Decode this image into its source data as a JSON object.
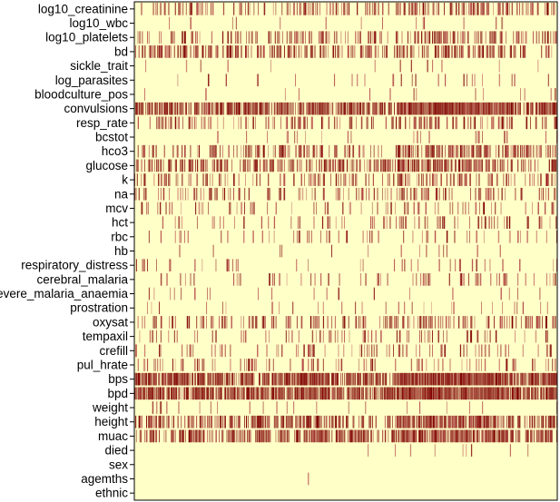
{
  "chart_data": {
    "type": "heatmap",
    "description_kind": "missingness-style heatmap: each row is a variable, each vertical stripe marks an observation shown in dark red; background is pale yellow",
    "colors": {
      "background": "#ffffc8",
      "marked": "#7f0000",
      "medium": "#b04040"
    },
    "rows": [
      {
        "name": "log10_creatinine",
        "density": 0.3,
        "intensity": 0.55
      },
      {
        "name": "log10_wbc",
        "density": 0.02,
        "intensity": 0.3
      },
      {
        "name": "log10_platelets",
        "density": 0.3,
        "intensity": 0.55
      },
      {
        "name": "bd",
        "density": 0.38,
        "intensity": 0.7
      },
      {
        "name": "sickle_trait",
        "density": 0.02,
        "intensity": 0.3
      },
      {
        "name": "log_parasites",
        "density": 0.05,
        "intensity": 0.35
      },
      {
        "name": "bloodculture_pos",
        "density": 0.02,
        "intensity": 0.3
      },
      {
        "name": "convulsions",
        "density": 0.7,
        "intensity": 0.9
      },
      {
        "name": "resp_rate",
        "density": 0.25,
        "intensity": 0.55
      },
      {
        "name": "bcstot",
        "density": 0.04,
        "intensity": 0.35
      },
      {
        "name": "hco3",
        "density": 0.38,
        "intensity": 0.7
      },
      {
        "name": "glucose",
        "density": 0.42,
        "intensity": 0.7
      },
      {
        "name": "k",
        "density": 0.22,
        "intensity": 0.55
      },
      {
        "name": "na",
        "density": 0.24,
        "intensity": 0.55
      },
      {
        "name": "mcv",
        "density": 0.12,
        "intensity": 0.4
      },
      {
        "name": "hct",
        "density": 0.12,
        "intensity": 0.4
      },
      {
        "name": "rbc",
        "density": 0.12,
        "intensity": 0.4
      },
      {
        "name": "hb",
        "density": 0.03,
        "intensity": 0.3
      },
      {
        "name": "respiratory_distress",
        "density": 0.08,
        "intensity": 0.4
      },
      {
        "name": "cerebral_malaria",
        "density": 0.1,
        "intensity": 0.4
      },
      {
        "name": "severe_malaria_anaemia",
        "density": 0.03,
        "intensity": 0.3
      },
      {
        "name": "prostration",
        "density": 0.05,
        "intensity": 0.35
      },
      {
        "name": "oxysat",
        "density": 0.25,
        "intensity": 0.55
      },
      {
        "name": "tempaxil",
        "density": 0.1,
        "intensity": 0.4
      },
      {
        "name": "crefill",
        "density": 0.15,
        "intensity": 0.45
      },
      {
        "name": "pul_hrate",
        "density": 0.12,
        "intensity": 0.45
      },
      {
        "name": "bps",
        "density": 0.75,
        "intensity": 0.95
      },
      {
        "name": "bpd",
        "density": 0.75,
        "intensity": 0.95
      },
      {
        "name": "weight",
        "density": 0.04,
        "intensity": 0.35
      },
      {
        "name": "height",
        "density": 0.55,
        "intensity": 0.8
      },
      {
        "name": "muac",
        "density": 0.55,
        "intensity": 0.8
      },
      {
        "name": "died",
        "density": 0.01,
        "intensity": 0.3
      },
      {
        "name": "sex",
        "density": 0.0,
        "intensity": 0.3
      },
      {
        "name": "agemths",
        "density": 0.005,
        "intensity": 0.3
      },
      {
        "name": "ethnic",
        "density": 0.0,
        "intensity": 0.3
      }
    ],
    "n_columns": 500
  }
}
